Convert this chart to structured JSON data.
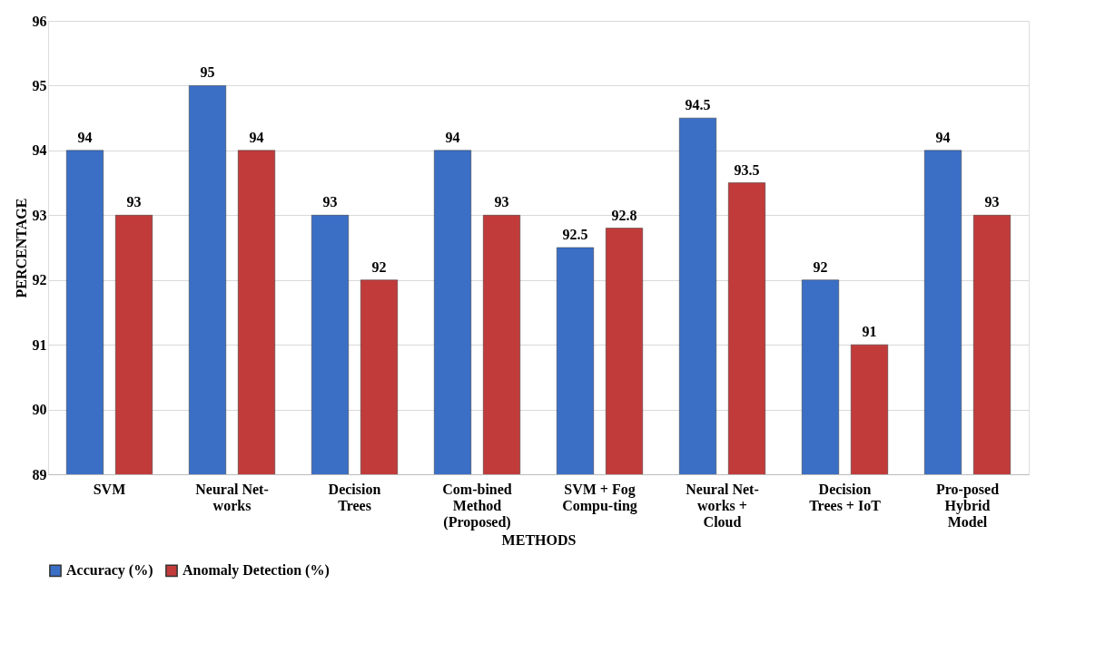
{
  "chart_data": {
    "type": "bar",
    "xlabel": "METHODS",
    "ylabel": "PERCENTAGE",
    "categories": [
      "SVM",
      "Neural Net-works",
      "Decision Trees",
      "Com-bined Method (Proposed)",
      "SVM + Fog Compu-ting",
      "Neural Net-works + Cloud",
      "Decision Trees + IoT",
      "Pro-posed Hybrid Model"
    ],
    "series": [
      {
        "name": "Accuracy (%)",
        "color": "#3b6fc6",
        "values": [
          94,
          95,
          93,
          94,
          92.5,
          94.5,
          92,
          94
        ]
      },
      {
        "name": "Anomaly Detection (%)",
        "color": "#c23b3b",
        "values": [
          93,
          94,
          92,
          93,
          92.8,
          93.5,
          91,
          93
        ]
      }
    ],
    "ylim": [
      89,
      96
    ],
    "yticks": [
      89,
      90,
      91,
      92,
      93,
      94,
      95,
      96
    ],
    "grid": "y",
    "legend": "bottom",
    "data_labels": true
  }
}
